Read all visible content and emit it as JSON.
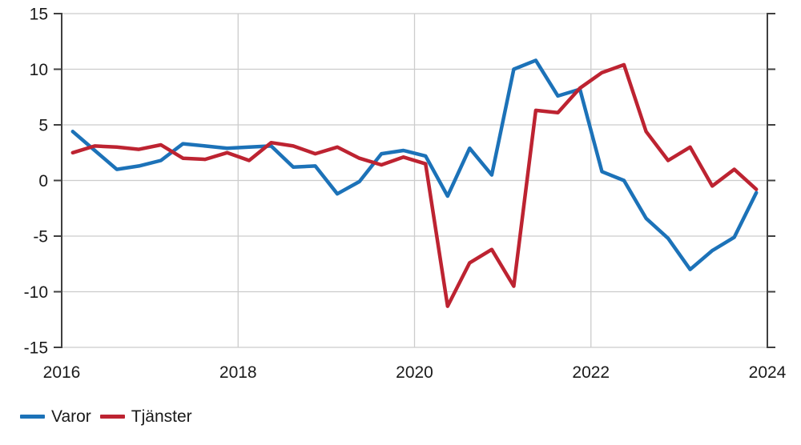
{
  "chart_data": {
    "type": "line",
    "title": "",
    "xlabel": "",
    "ylabel": "",
    "x_start": 2016.125,
    "x_step": 0.25,
    "frequency": "quarterly",
    "xlim": [
      2016,
      2024
    ],
    "ylim": [
      -15,
      15
    ],
    "grid": {
      "h_values": [
        10,
        5,
        0,
        -5,
        -10
      ],
      "v_years": [
        2018,
        2020,
        2022
      ]
    },
    "legend_position": "bottom-left",
    "axis_color": "#404040",
    "gridline_color": "#cccccc",
    "label_color": "#1a1a1a",
    "y_ticks": [
      {
        "value": 15,
        "label": "15"
      },
      {
        "value": 10,
        "label": "10"
      },
      {
        "value": 5,
        "label": "5"
      },
      {
        "value": 0,
        "label": "0"
      },
      {
        "value": -5,
        "label": "-5"
      },
      {
        "value": -10,
        "label": "-10"
      },
      {
        "value": -15,
        "label": "-15"
      }
    ],
    "x_ticks": [
      {
        "year": 2016,
        "label": "2016"
      },
      {
        "year": 2018,
        "label": "2018"
      },
      {
        "year": 2020,
        "label": "2020"
      },
      {
        "year": 2022,
        "label": "2022"
      },
      {
        "year": 2024,
        "label": "2024"
      }
    ],
    "series": [
      {
        "name": "Varor",
        "color": "#1c72b8",
        "values": [
          4.4,
          2.7,
          1.0,
          1.3,
          1.8,
          3.3,
          3.1,
          2.9,
          3.0,
          3.1,
          1.2,
          1.3,
          -1.2,
          -0.1,
          2.4,
          2.7,
          2.2,
          -1.4,
          2.9,
          0.5,
          10.0,
          10.8,
          7.6,
          8.2,
          0.8,
          0.0,
          -3.4,
          -5.2,
          -8.0,
          -6.3,
          -5.1,
          -1.1
        ]
      },
      {
        "name": "Tjänster",
        "color": "#bd2331",
        "values": [
          2.5,
          3.1,
          3.0,
          2.8,
          3.2,
          2.0,
          1.9,
          2.5,
          1.8,
          3.4,
          3.1,
          2.4,
          3.0,
          2.0,
          1.4,
          2.1,
          1.5,
          -11.3,
          -7.4,
          -6.2,
          -9.5,
          6.3,
          6.1,
          8.3,
          9.7,
          10.4,
          4.4,
          1.8,
          3.0,
          -0.5,
          1.0,
          -0.8
        ]
      }
    ]
  }
}
